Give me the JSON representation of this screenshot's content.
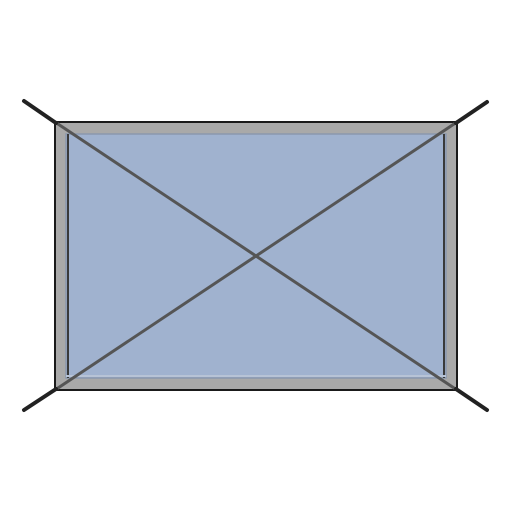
{
  "diagram": {
    "kind": "fixed-window-glazing-symbol",
    "colors": {
      "background": "#ffffff",
      "frame_fill": "#a9a9a9",
      "frame_stroke": "#1a1a1a",
      "glass_fill": "#a0b2cf",
      "glass_border": "#8a98ad",
      "sash_line": "#3a3a3a",
      "diagonal": "#555555",
      "corner_line": "#222222"
    }
  }
}
